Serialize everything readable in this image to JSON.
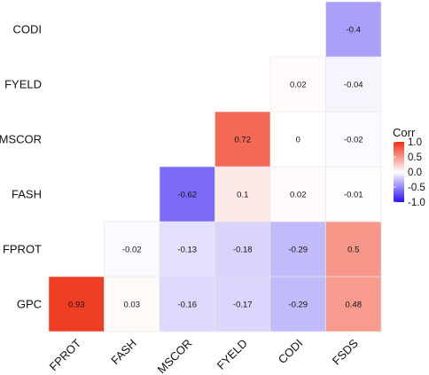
{
  "chart_data": {
    "type": "heatmap",
    "x_categories": [
      "FPROT",
      "FASH",
      "MSCOR",
      "FYELD",
      "CODI",
      "FSDS"
    ],
    "y_categories": [
      "GPC",
      "FPROT",
      "FASH",
      "MSCOR",
      "FYELD",
      "CODI"
    ],
    "cells": [
      {
        "x": "FPROT",
        "y": "GPC",
        "value": 0.93,
        "label": "0.93"
      },
      {
        "x": "FASH",
        "y": "GPC",
        "value": 0.03,
        "label": "0.03"
      },
      {
        "x": "MSCOR",
        "y": "GPC",
        "value": -0.16,
        "label": "-0.16"
      },
      {
        "x": "FYELD",
        "y": "GPC",
        "value": -0.17,
        "label": "-0.17"
      },
      {
        "x": "CODI",
        "y": "GPC",
        "value": -0.29,
        "label": "-0.29"
      },
      {
        "x": "FSDS",
        "y": "GPC",
        "value": 0.48,
        "label": "0.48"
      },
      {
        "x": "FASH",
        "y": "FPROT",
        "value": -0.02,
        "label": "-0.02"
      },
      {
        "x": "MSCOR",
        "y": "FPROT",
        "value": -0.13,
        "label": "-0.13"
      },
      {
        "x": "FYELD",
        "y": "FPROT",
        "value": -0.18,
        "label": "-0.18"
      },
      {
        "x": "CODI",
        "y": "FPROT",
        "value": -0.29,
        "label": "-0.29"
      },
      {
        "x": "FSDS",
        "y": "FPROT",
        "value": 0.5,
        "label": "0.5"
      },
      {
        "x": "MSCOR",
        "y": "FASH",
        "value": -0.62,
        "label": "-0.62"
      },
      {
        "x": "FYELD",
        "y": "FASH",
        "value": 0.1,
        "label": "0.1"
      },
      {
        "x": "CODI",
        "y": "FASH",
        "value": 0.02,
        "label": "0.02"
      },
      {
        "x": "FSDS",
        "y": "FASH",
        "value": -0.01,
        "label": "-0.01"
      },
      {
        "x": "FYELD",
        "y": "MSCOR",
        "value": 0.72,
        "label": "0.72"
      },
      {
        "x": "CODI",
        "y": "MSCOR",
        "value": 0,
        "label": "0"
      },
      {
        "x": "FSDS",
        "y": "MSCOR",
        "value": -0.02,
        "label": "-0.02"
      },
      {
        "x": "CODI",
        "y": "FYELD",
        "value": 0.02,
        "label": "0.02"
      },
      {
        "x": "FSDS",
        "y": "FYELD",
        "value": -0.04,
        "label": "-0.04"
      },
      {
        "x": "FSDS",
        "y": "CODI",
        "value": -0.4,
        "label": "-0.4"
      }
    ],
    "legend": {
      "title": "Corr",
      "ticks": [
        "1.0",
        "0.5",
        "0.0",
        "-0.5",
        "-1.0"
      ],
      "tick_values": [
        1.0,
        0.5,
        0.0,
        -0.5,
        -1.0
      ],
      "placement": "right"
    },
    "colors": {
      "high": "#ef2f14",
      "mid": "#ffffff",
      "low": "#2a10f0"
    },
    "vlim": [
      -1,
      1
    ]
  }
}
